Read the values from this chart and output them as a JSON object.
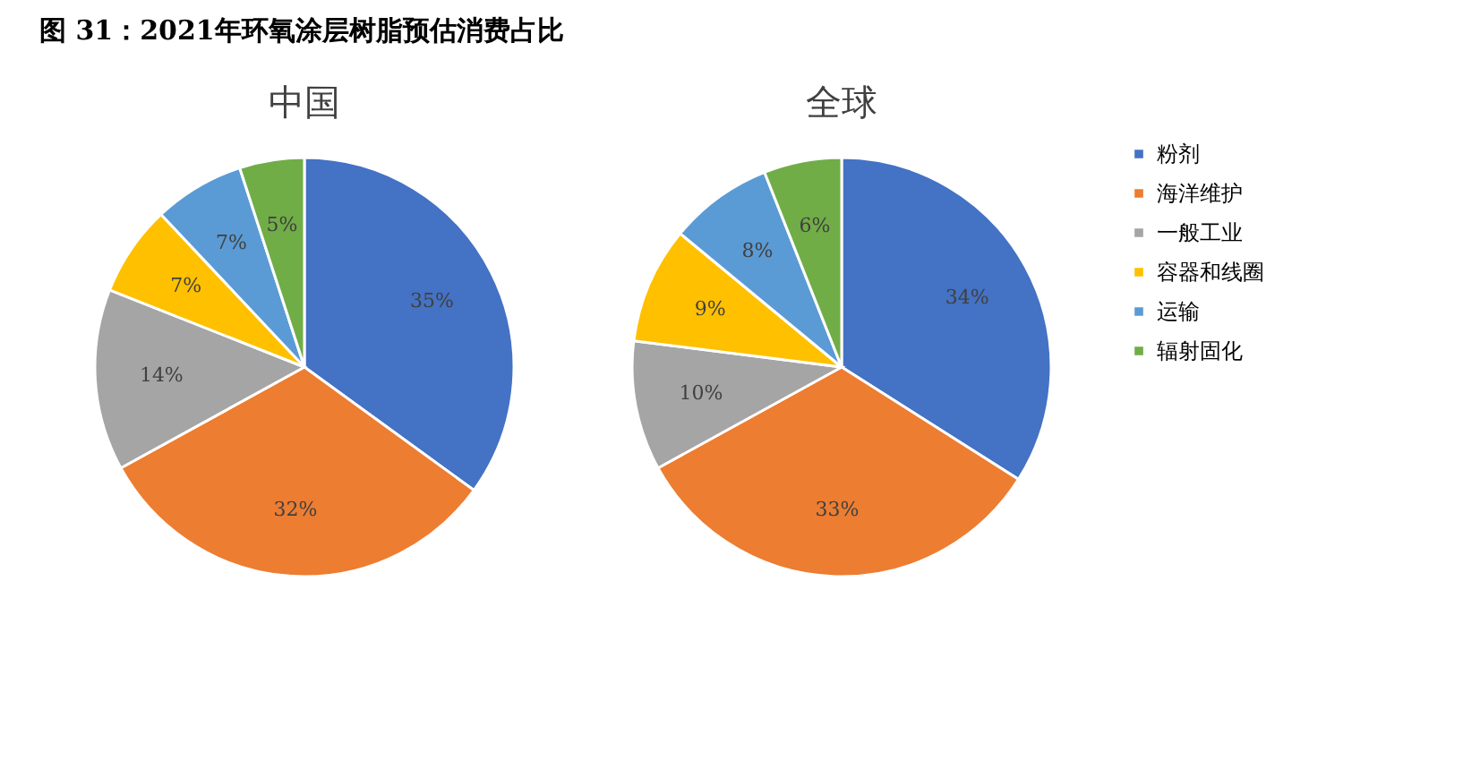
{
  "chart_data": [
    {
      "type": "pie",
      "title": "图 31：2021年环氧涂层树脂预估消费占比",
      "subtitle": "中国",
      "categories": [
        null,
        null,
        null,
        null,
        null,
        null
      ],
      "values": [
        35,
        32,
        14,
        7,
        7,
        5
      ],
      "colors": [
        "#4472c4",
        "#ed7d31",
        "#a5a5a5",
        "#ffc000",
        "#5b9bd5",
        "#70ad47"
      ],
      "value_labels": [
        "35%",
        "32%",
        "14%",
        "7%",
        "7%",
        "5%"
      ]
    },
    {
      "type": "pie",
      "title": "全球",
      "categories": [
        "粉剂",
        "海洋维护",
        "一般工业",
        "容器和线圈",
        "运输",
        "辐射固化"
      ],
      "values": [
        34,
        33,
        10,
        9,
        8,
        6
      ],
      "colors": [
        "#4472c4",
        "#ed7d31",
        "#a5a5a5",
        "#ffc000",
        "#5b9bd5",
        "#70ad47"
      ],
      "value_labels": [
        "34%",
        "33%",
        "10%",
        "9%",
        "8%",
        "6%"
      ],
      "legend": "right"
    }
  ]
}
